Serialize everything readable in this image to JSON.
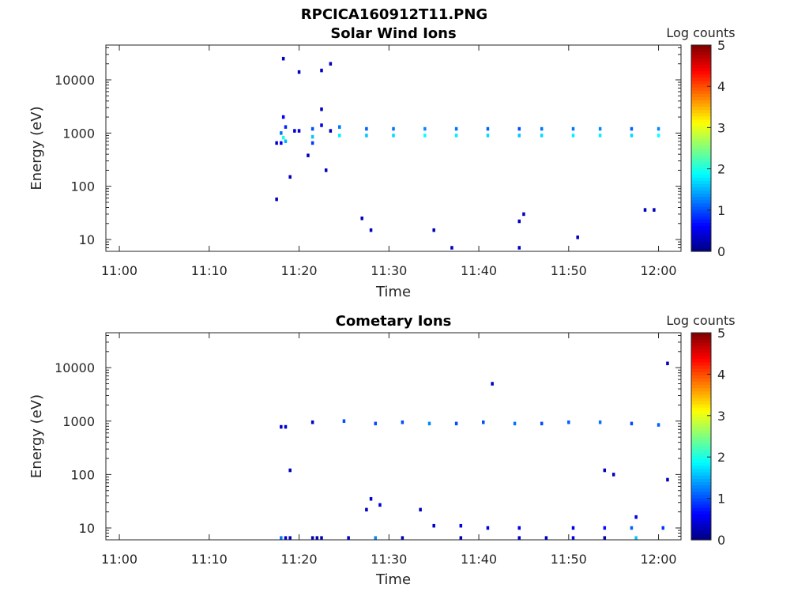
{
  "figure_title": "RPCICA160912T11.PNG",
  "colorbar": {
    "label": "Log counts",
    "range": [
      0,
      5
    ],
    "ticks": [
      "0",
      "1",
      "2",
      "3",
      "4",
      "5"
    ],
    "colormap": "jet"
  },
  "chart_data": [
    {
      "type": "heatmap",
      "title": "Solar Wind Ions",
      "xlabel": "Time",
      "ylabel": "Energy (eV)",
      "yscale": "log",
      "xlim": [
        "10:58:30",
        "12:02:30"
      ],
      "ylim": [
        6,
        45000
      ],
      "x_ticks": [
        "11:00",
        "11:10",
        "11:20",
        "11:30",
        "11:40",
        "11:50",
        "12:00"
      ],
      "y_ticks": [
        "10",
        "100",
        "1000",
        "10000"
      ],
      "cells": [
        [
          "11:17:30",
          57,
          0.3
        ],
        [
          "11:17:30",
          650,
          0.4
        ],
        [
          "11:18:00",
          650,
          0.6
        ],
        [
          "11:18:00",
          1000,
          1.2
        ],
        [
          "11:18:15",
          820,
          2.0
        ],
        [
          "11:18:30",
          700,
          1.5
        ],
        [
          "11:18:15",
          2000,
          0.6
        ],
        [
          "11:18:30",
          1300,
          0.8
        ],
        [
          "11:18:15",
          25000,
          0.3
        ],
        [
          "11:19:00",
          150,
          0.3
        ],
        [
          "11:19:30",
          1100,
          0.4
        ],
        [
          "11:20:00",
          1100,
          0.4
        ],
        [
          "11:20:00",
          14000,
          0.3
        ],
        [
          "11:21:00",
          380,
          0.3
        ],
        [
          "11:21:30",
          850,
          1.6
        ],
        [
          "11:21:30",
          1200,
          1.0
        ],
        [
          "11:21:30",
          650,
          0.9
        ],
        [
          "11:22:30",
          1400,
          0.5
        ],
        [
          "11:22:30",
          15000,
          0.3
        ],
        [
          "11:22:30",
          2800,
          0.3
        ],
        [
          "11:23:00",
          200,
          0.3
        ],
        [
          "11:23:30",
          1100,
          0.3
        ],
        [
          "11:23:30",
          20000,
          0.3
        ],
        [
          "11:24:30",
          900,
          1.8
        ],
        [
          "11:24:30",
          1300,
          1.2
        ],
        [
          "11:27:00",
          25,
          0.3
        ],
        [
          "11:28:00",
          15,
          0.3
        ],
        [
          "11:27:30",
          900,
          1.6
        ],
        [
          "11:27:30",
          1200,
          1.1
        ],
        [
          "11:30:30",
          900,
          1.7
        ],
        [
          "11:30:30",
          1200,
          1.2
        ],
        [
          "11:34:00",
          900,
          1.9
        ],
        [
          "11:34:00",
          1200,
          1.3
        ],
        [
          "11:35:00",
          15,
          0.3
        ],
        [
          "11:37:00",
          7,
          0.3
        ],
        [
          "11:37:30",
          900,
          1.8
        ],
        [
          "11:37:30",
          1200,
          1.2
        ],
        [
          "11:41:00",
          900,
          1.7
        ],
        [
          "11:41:00",
          1200,
          1.1
        ],
        [
          "11:44:30",
          7,
          0.3
        ],
        [
          "11:44:30",
          22,
          0.3
        ],
        [
          "11:45:00",
          30,
          0.3
        ],
        [
          "11:44:30",
          900,
          1.6
        ],
        [
          "11:44:30",
          1200,
          1.0
        ],
        [
          "11:47:00",
          900,
          1.7
        ],
        [
          "11:47:00",
          1200,
          1.2
        ],
        [
          "11:50:30",
          900,
          1.8
        ],
        [
          "11:50:30",
          1200,
          1.2
        ],
        [
          "11:51:00",
          11,
          0.3
        ],
        [
          "11:53:30",
          900,
          1.8
        ],
        [
          "11:53:30",
          1200,
          1.3
        ],
        [
          "11:57:00",
          900,
          1.7
        ],
        [
          "11:57:00",
          1200,
          1.1
        ],
        [
          "11:58:30",
          36,
          0.3
        ],
        [
          "11:59:30",
          36,
          0.3
        ],
        [
          "12:00:00",
          900,
          1.9
        ],
        [
          "12:00:00",
          1200,
          1.3
        ]
      ]
    },
    {
      "type": "heatmap",
      "title": "Cometary Ions",
      "xlabel": "Time",
      "ylabel": "Energy (eV)",
      "yscale": "log",
      "xlim": [
        "10:58:30",
        "12:02:30"
      ],
      "ylim": [
        6,
        45000
      ],
      "x_ticks": [
        "11:00",
        "11:10",
        "11:20",
        "11:30",
        "11:40",
        "11:50",
        "12:00"
      ],
      "y_ticks": [
        "10",
        "100",
        "1000",
        "10000"
      ],
      "cells": [
        [
          "11:18:00",
          780,
          0.4
        ],
        [
          "11:18:30",
          780,
          0.4
        ],
        [
          "11:18:00",
          6.5,
          1.2
        ],
        [
          "11:18:30",
          6.5,
          0.4
        ],
        [
          "11:19:00",
          6.5,
          0.3
        ],
        [
          "11:19:00",
          120,
          0.3
        ],
        [
          "11:21:30",
          950,
          0.4
        ],
        [
          "11:21:30",
          6.5,
          0.3
        ],
        [
          "11:22:00",
          6.5,
          0.3
        ],
        [
          "11:22:30",
          6.5,
          0.3
        ],
        [
          "11:25:00",
          1000,
          1.0
        ],
        [
          "11:25:30",
          6.5,
          0.4
        ],
        [
          "11:27:30",
          22,
          0.3
        ],
        [
          "11:28:00",
          35,
          0.4
        ],
        [
          "11:29:00",
          27,
          0.4
        ],
        [
          "11:28:30",
          900,
          1.0
        ],
        [
          "11:28:30",
          6.5,
          1.3
        ],
        [
          "11:31:30",
          950,
          1.0
        ],
        [
          "11:31:30",
          6.5,
          0.3
        ],
        [
          "11:33:30",
          22,
          0.3
        ],
        [
          "11:34:30",
          900,
          1.3
        ],
        [
          "11:35:00",
          11,
          0.4
        ],
        [
          "11:37:30",
          900,
          1.0
        ],
        [
          "11:38:00",
          6.5,
          0.3
        ],
        [
          "11:38:00",
          11,
          0.5
        ],
        [
          "11:40:30",
          950,
          1.0
        ],
        [
          "11:41:00",
          10,
          0.5
        ],
        [
          "11:41:30",
          5000,
          0.3
        ],
        [
          "11:44:00",
          900,
          1.2
        ],
        [
          "11:44:30",
          10,
          0.5
        ],
        [
          "11:44:30",
          6.5,
          0.4
        ],
        [
          "11:47:00",
          900,
          1.0
        ],
        [
          "11:47:30",
          6.5,
          0.4
        ],
        [
          "11:50:00",
          950,
          1.1
        ],
        [
          "11:50:30",
          10,
          0.5
        ],
        [
          "11:50:30",
          6.5,
          0.6
        ],
        [
          "11:53:30",
          950,
          1.2
        ],
        [
          "11:54:00",
          10,
          0.7
        ],
        [
          "11:54:00",
          6.5,
          0.3
        ],
        [
          "11:54:00",
          120,
          0.3
        ],
        [
          "11:55:00",
          100,
          0.3
        ],
        [
          "11:57:00",
          900,
          1.0
        ],
        [
          "11:57:00",
          10,
          1.1
        ],
        [
          "11:57:30",
          16,
          0.5
        ],
        [
          "11:57:30",
          6.5,
          1.6
        ],
        [
          "12:00:00",
          850,
          1.1
        ],
        [
          "12:00:30",
          10,
          0.9
        ],
        [
          "12:01:00",
          12000,
          0.3
        ],
        [
          "12:01:00",
          80,
          0.3
        ]
      ]
    }
  ]
}
